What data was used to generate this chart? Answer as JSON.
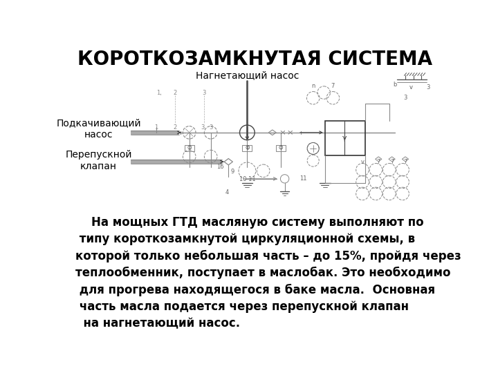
{
  "title": "КОРОТКОЗАМКНУТАЯ СИСТЕМА",
  "title_fontsize": 20,
  "title_fontweight": "bold",
  "bg_color": "#ffffff",
  "label_nagnetayuschiy": "Нагнетающий насос",
  "label_podkachivayuschiy": "Подкачивающий\nнасос",
  "label_perepusknoy": "Перепускной\nклапан",
  "body_text": "    На мощных ГТД масляную систему выполняют по\n типу короткозамкнутой циркуляционной схемы, в\nкоторой только небольшая часть – до 15%, пройдя через\nтеплообменник, поступает в маслобак. Это необходимо\n для прогрева находящегося в баке масла.  Основная\n часть масла подается через перепускной клапан\n  на нагнетающий насос.",
  "body_fontsize": 12,
  "label_fontsize": 10,
  "diag_color": "#888888",
  "diag_lw": 0.8
}
